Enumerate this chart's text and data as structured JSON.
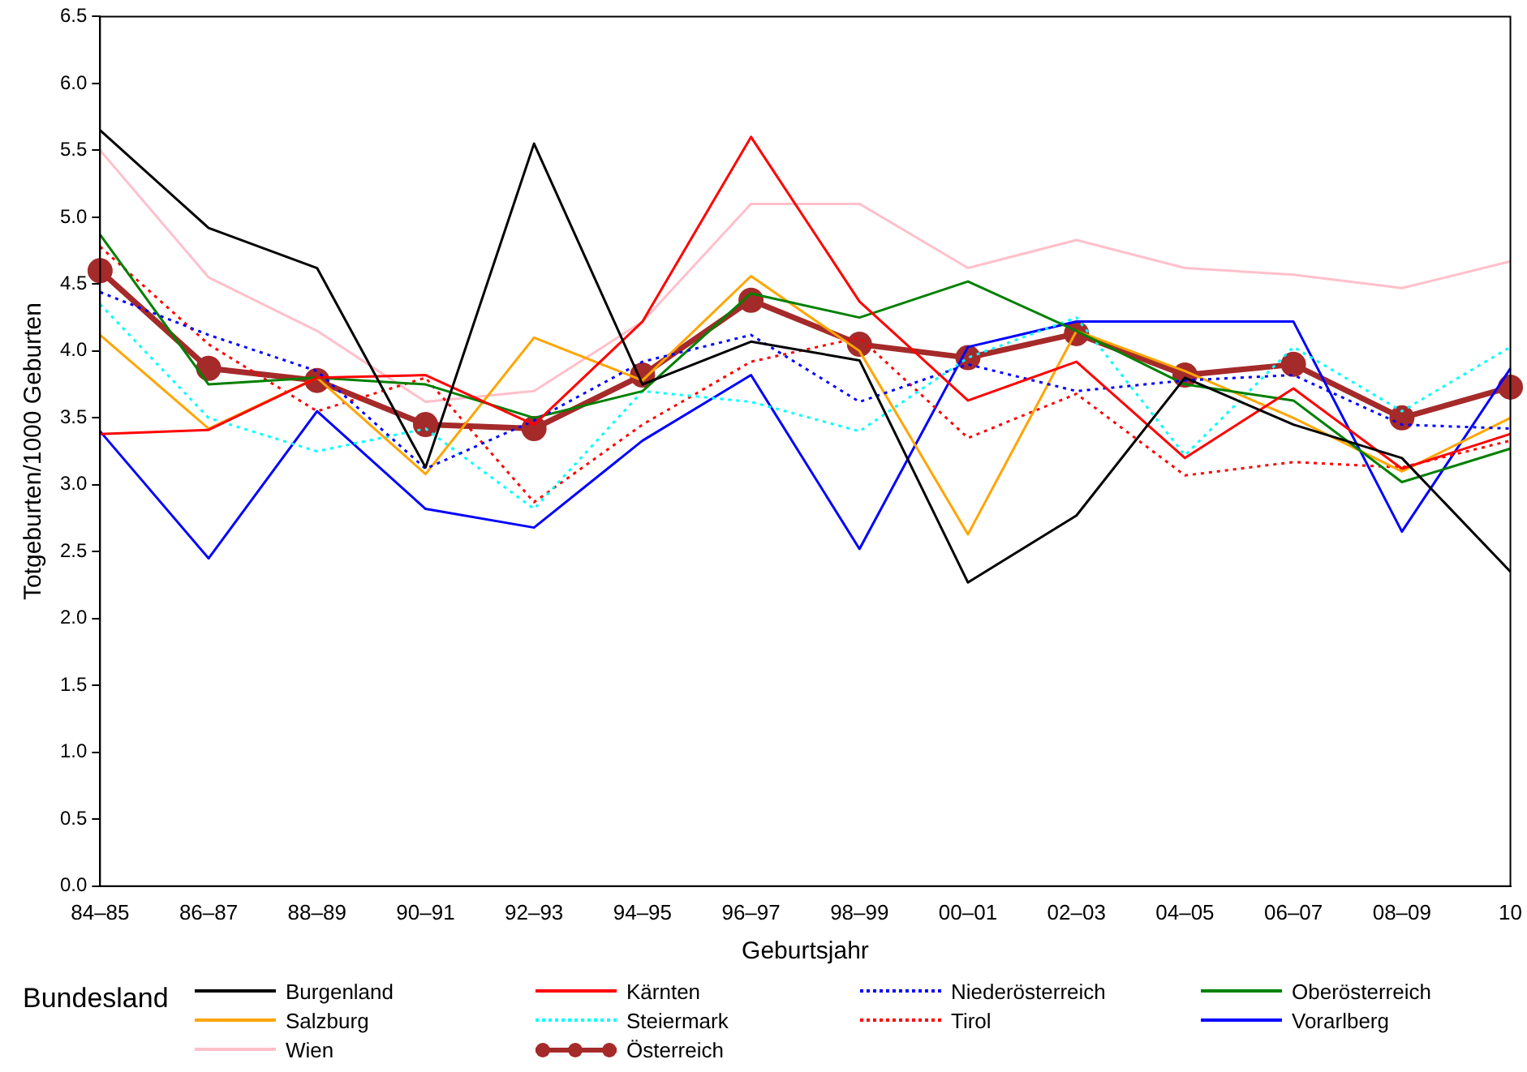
{
  "chart_data": {
    "type": "line",
    "xlabel": "Geburtsjahr",
    "ylabel": "Totgeburten/1000 Geburten",
    "legend_title": "Bundesland",
    "legend": "bottom",
    "grid": false,
    "categories": [
      "84–85",
      "86–87",
      "88–89",
      "90–91",
      "92–93",
      "94–95",
      "96–97",
      "98–99",
      "00–01",
      "02–03",
      "04–05",
      "06–07",
      "08–09",
      "10"
    ],
    "ylim": [
      0,
      6.5
    ],
    "yticks": [
      {
        "value": 0,
        "label": "0.0"
      },
      {
        "value": 0.5,
        "label": "0.5"
      },
      {
        "value": 1,
        "label": "1.0"
      },
      {
        "value": 1.5,
        "label": "1.5"
      },
      {
        "value": 2,
        "label": "2.0"
      },
      {
        "value": 2.5,
        "label": "2.5"
      },
      {
        "value": 3,
        "label": "3.0"
      },
      {
        "value": 3.5,
        "label": "3.5"
      },
      {
        "value": 4,
        "label": "4.0"
      },
      {
        "value": 4.5,
        "label": "4.5"
      },
      {
        "value": 5,
        "label": "5.0"
      },
      {
        "value": 5.5,
        "label": "5.5"
      },
      {
        "value": 6,
        "label": "6.0"
      },
      {
        "value": 6.5,
        "label": "6.5"
      }
    ],
    "series": [
      {
        "name": "Burgenland",
        "color": "#000000",
        "line_style": "solid",
        "marker": "none",
        "values": [
          5.65,
          4.92,
          4.62,
          3.13,
          5.55,
          3.75,
          4.07,
          3.93,
          2.27,
          2.77,
          3.8,
          3.45,
          3.2,
          2.35
        ]
      },
      {
        "name": "Kärnten",
        "color": "#ff0000",
        "line_style": "solid",
        "marker": "none",
        "values": [
          3.38,
          3.41,
          3.8,
          3.82,
          3.45,
          4.22,
          5.6,
          4.37,
          3.63,
          3.92,
          3.2,
          3.72,
          3.12,
          3.38
        ]
      },
      {
        "name": "Niederösterreich",
        "color": "#0000ff",
        "line_style": "dotted",
        "marker": "none",
        "values": [
          4.44,
          4.12,
          3.85,
          3.12,
          3.48,
          3.92,
          4.12,
          3.62,
          3.9,
          3.7,
          3.78,
          3.82,
          3.45,
          3.42
        ]
      },
      {
        "name": "Oberösterreich",
        "color": "#008000",
        "line_style": "solid",
        "marker": "none",
        "values": [
          4.87,
          3.75,
          3.8,
          3.75,
          3.5,
          3.7,
          4.43,
          4.25,
          4.52,
          4.15,
          3.75,
          3.63,
          3.02,
          3.27
        ]
      },
      {
        "name": "Salzburg",
        "color": "#ffa500",
        "line_style": "solid",
        "marker": "none",
        "values": [
          4.12,
          3.42,
          3.8,
          3.08,
          4.1,
          3.78,
          4.56,
          4.0,
          2.63,
          4.15,
          3.85,
          3.5,
          3.1,
          3.5
        ]
      },
      {
        "name": "Steiermark",
        "color": "#00ffff",
        "line_style": "dotted",
        "marker": "none",
        "values": [
          4.35,
          3.5,
          3.25,
          3.42,
          2.82,
          3.7,
          3.62,
          3.4,
          3.95,
          4.25,
          3.22,
          4.03,
          3.55,
          4.03
        ]
      },
      {
        "name": "Tirol",
        "color": "#ff0000",
        "line_style": "dotted",
        "marker": "none",
        "values": [
          4.78,
          4.05,
          3.55,
          3.8,
          2.87,
          3.45,
          3.92,
          4.1,
          3.35,
          3.68,
          3.07,
          3.17,
          3.13,
          3.33
        ]
      },
      {
        "name": "Vorarlberg",
        "color": "#0000ff",
        "line_style": "solid",
        "marker": "none",
        "values": [
          3.4,
          2.45,
          3.55,
          2.82,
          2.68,
          3.33,
          3.82,
          2.52,
          4.03,
          4.22,
          4.22,
          4.22,
          2.65,
          3.87
        ]
      },
      {
        "name": "Wien",
        "color": "#ffc0cb",
        "line_style": "solid",
        "marker": "none",
        "values": [
          5.5,
          4.55,
          4.15,
          3.62,
          3.7,
          4.22,
          5.1,
          5.1,
          4.62,
          4.83,
          4.62,
          4.57,
          4.47,
          4.67
        ]
      },
      {
        "name": "Österreich",
        "color": "#a52a2a",
        "line_style": "solid",
        "marker": "circle",
        "values": [
          4.6,
          3.87,
          3.78,
          3.45,
          3.42,
          3.82,
          4.38,
          4.05,
          3.95,
          4.13,
          3.82,
          3.9,
          3.5,
          3.73
        ]
      }
    ]
  }
}
